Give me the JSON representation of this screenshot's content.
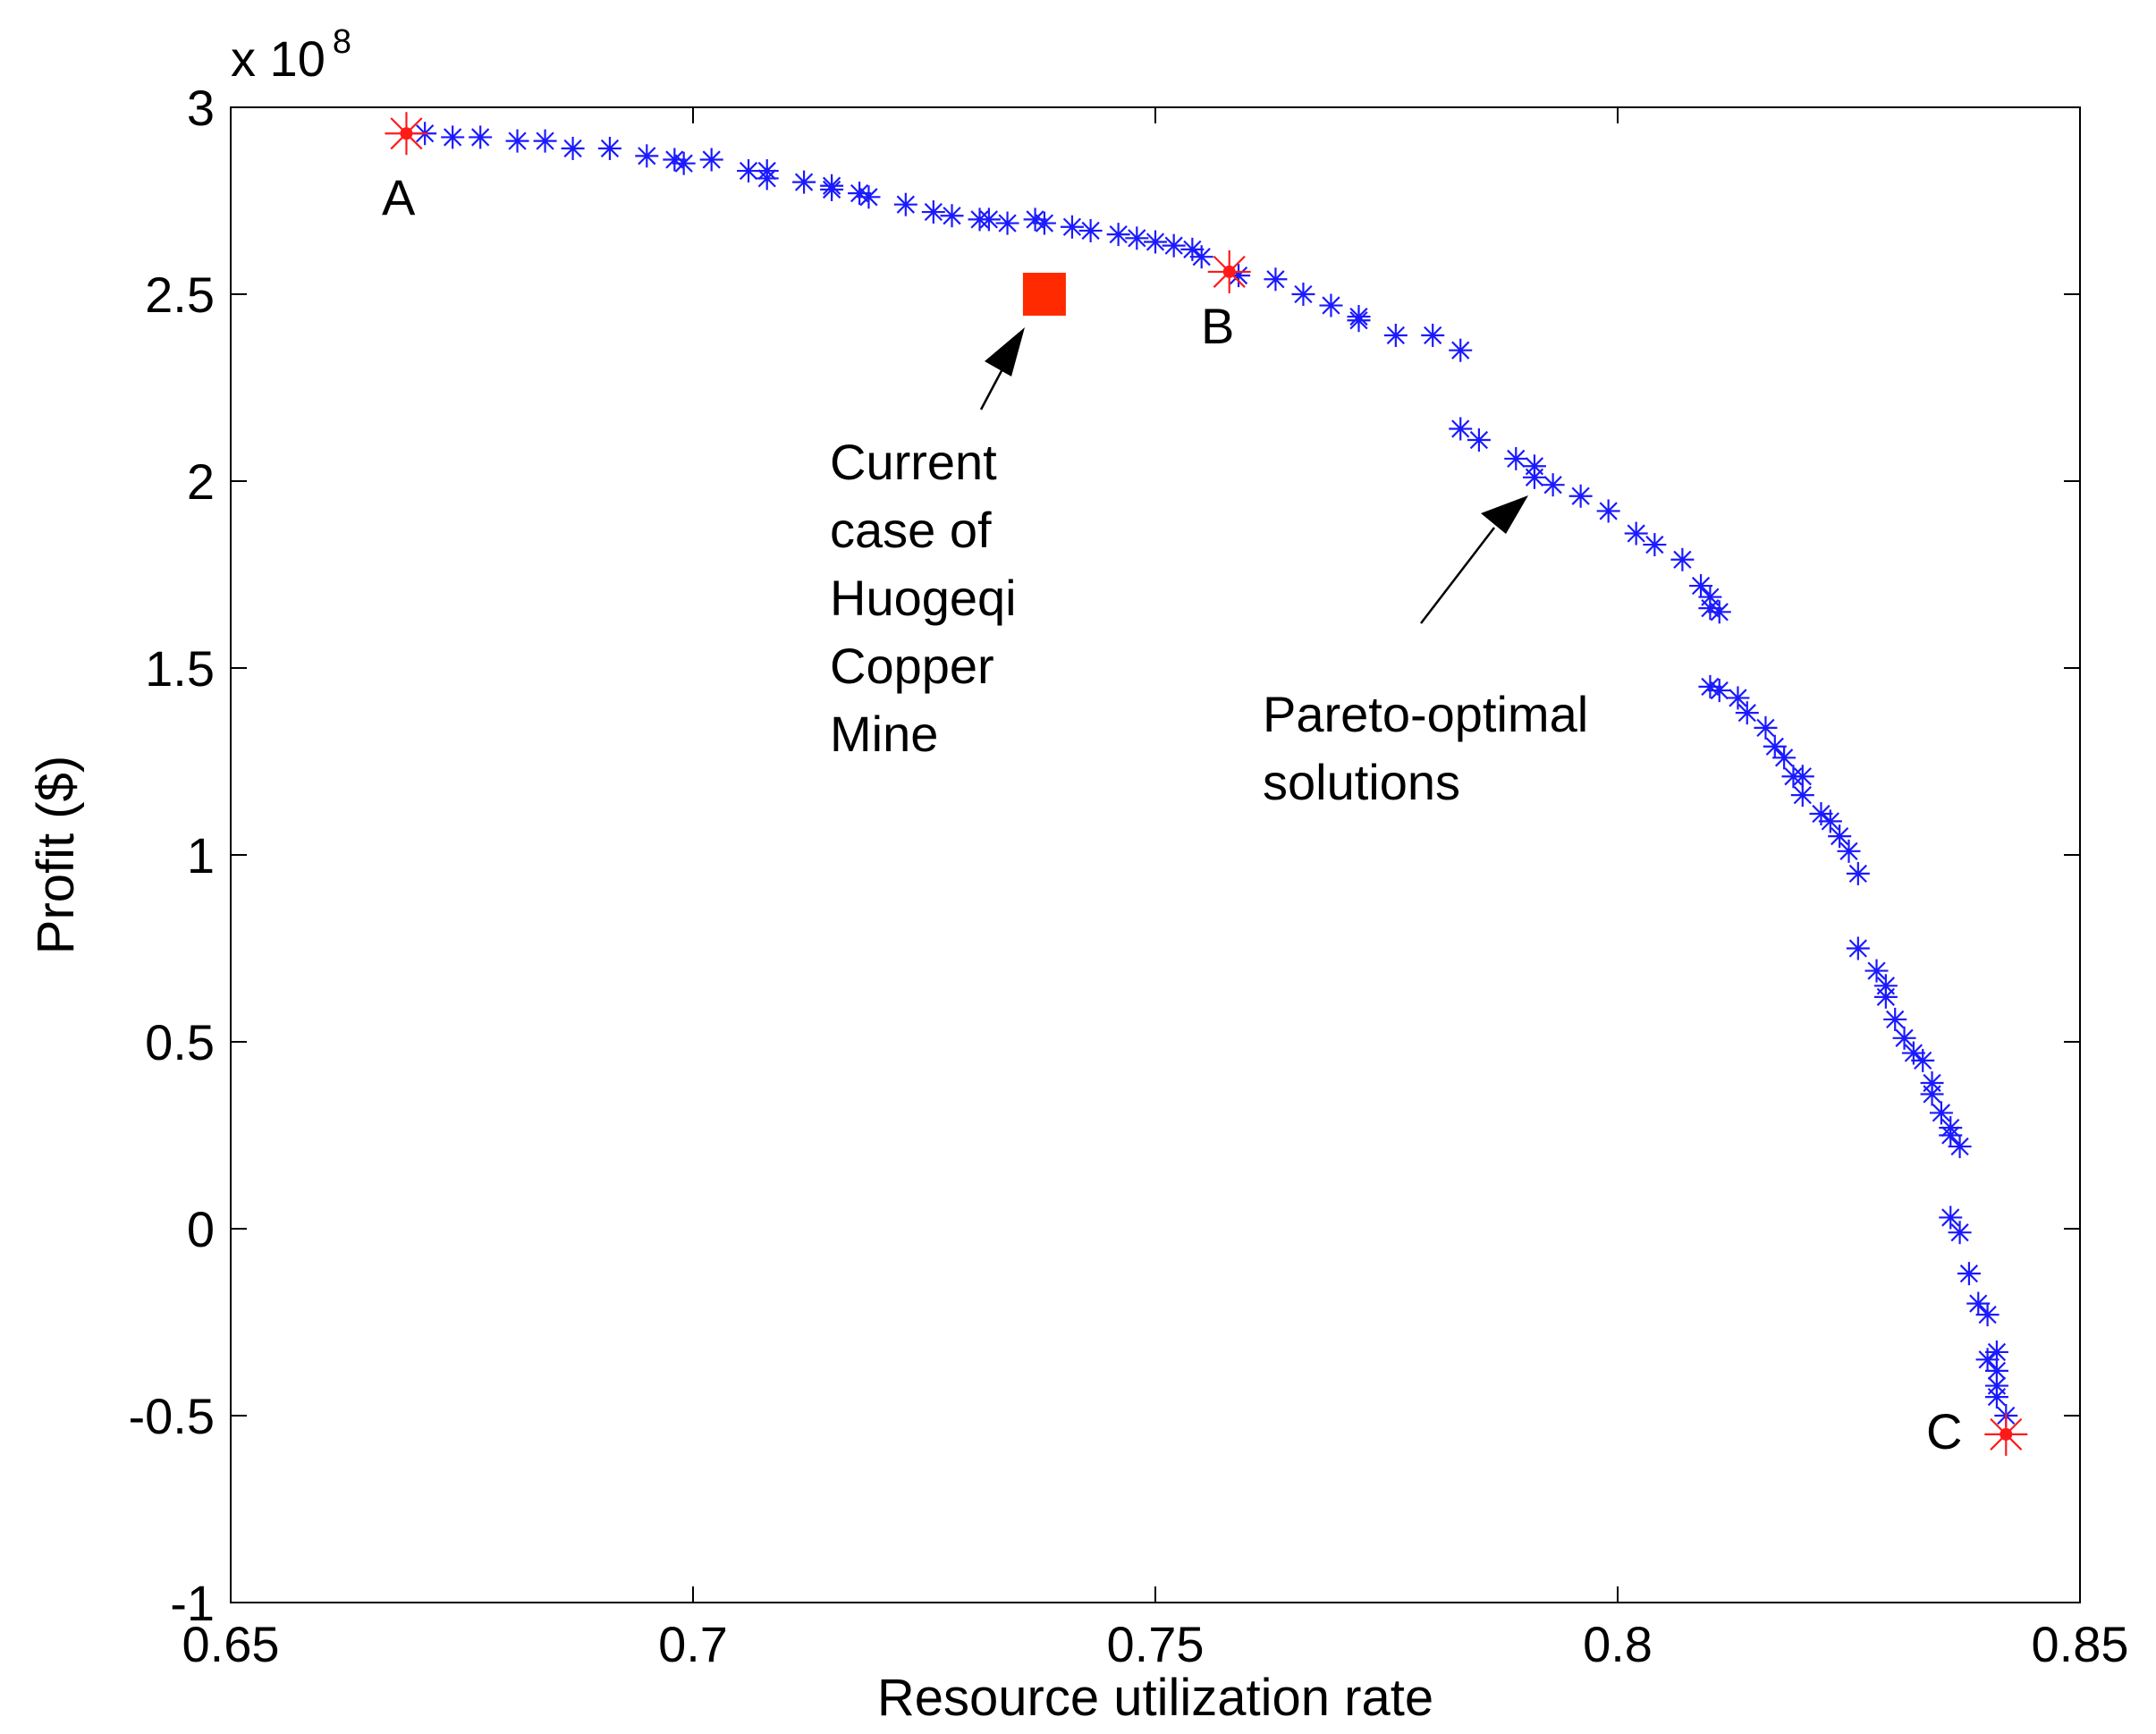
{
  "chart_data": {
    "type": "scatter",
    "xlabel": "Resource utilization rate",
    "ylabel": "Profit ($)",
    "y_multiplier": "x 10",
    "y_multiplier_exp": "8",
    "xlim": [
      0.65,
      0.85
    ],
    "ylim": [
      -1,
      3
    ],
    "xticks": [
      0.65,
      0.7,
      0.75,
      0.8,
      0.85
    ],
    "xtick_labels": [
      "0.65",
      "0.7",
      "0.75",
      "0.8",
      "0.85"
    ],
    "yticks": [
      -1,
      -0.5,
      0,
      0.5,
      1,
      1.5,
      2,
      2.5,
      3
    ],
    "ytick_labels": [
      "-1",
      "-0.5",
      "0",
      "0.5",
      "1",
      "1.5",
      "2",
      "2.5",
      "3"
    ],
    "grid": false,
    "colors": {
      "series": "#1a1aff",
      "highlight": "#ff1a1a",
      "current": "#ff2a00",
      "arrow": "#000000"
    },
    "series": [
      {
        "name": "Pareto-optimal solutions",
        "marker": "star",
        "x": [
          0.671,
          0.674,
          0.677,
          0.681,
          0.684,
          0.687,
          0.691,
          0.695,
          0.698,
          0.699,
          0.702,
          0.706,
          0.708,
          0.708,
          0.712,
          0.715,
          0.715,
          0.718,
          0.719,
          0.723,
          0.726,
          0.728,
          0.731,
          0.732,
          0.734,
          0.737,
          0.738,
          0.741,
          0.743,
          0.746,
          0.748,
          0.75,
          0.752,
          0.754,
          0.755,
          0.759,
          0.763,
          0.766,
          0.769,
          0.772,
          0.772,
          0.776,
          0.78,
          0.783,
          0.783,
          0.785,
          0.789,
          0.791,
          0.791,
          0.793,
          0.796,
          0.799,
          0.802,
          0.804,
          0.807,
          0.809,
          0.81,
          0.81,
          0.811,
          0.81,
          0.811,
          0.813,
          0.814,
          0.816,
          0.817,
          0.818,
          0.819,
          0.82,
          0.82,
          0.822,
          0.823,
          0.824,
          0.825,
          0.826,
          0.826,
          0.828,
          0.829,
          0.829,
          0.83,
          0.831,
          0.832,
          0.833,
          0.834,
          0.834,
          0.835,
          0.836,
          0.836,
          0.837,
          0.836,
          0.837,
          0.838,
          0.839,
          0.84,
          0.841,
          0.84,
          0.841,
          0.841,
          0.841,
          0.842
        ],
        "y": [
          2.93,
          2.92,
          2.92,
          2.91,
          2.91,
          2.89,
          2.89,
          2.87,
          2.86,
          2.85,
          2.86,
          2.83,
          2.83,
          2.81,
          2.8,
          2.79,
          2.78,
          2.77,
          2.76,
          2.74,
          2.72,
          2.71,
          2.7,
          2.7,
          2.69,
          2.7,
          2.69,
          2.68,
          2.67,
          2.66,
          2.65,
          2.64,
          2.63,
          2.62,
          2.6,
          2.55,
          2.54,
          2.5,
          2.47,
          2.44,
          2.43,
          2.39,
          2.39,
          2.35,
          2.14,
          2.11,
          2.06,
          2.04,
          2.01,
          1.99,
          1.96,
          1.92,
          1.86,
          1.83,
          1.79,
          1.72,
          1.69,
          1.66,
          1.65,
          1.45,
          1.44,
          1.42,
          1.38,
          1.34,
          1.29,
          1.26,
          1.21,
          1.16,
          1.21,
          1.11,
          1.09,
          1.05,
          1.01,
          0.95,
          0.75,
          0.69,
          0.65,
          0.62,
          0.56,
          0.51,
          0.47,
          0.45,
          0.39,
          0.36,
          0.31,
          0.27,
          0.25,
          0.22,
          0.03,
          -0.01,
          -0.12,
          -0.2,
          -0.23,
          -0.33,
          -0.35,
          -0.38,
          -0.42,
          -0.45,
          -0.5
        ]
      }
    ],
    "highlighted_points": [
      {
        "label": "A",
        "x": 0.669,
        "y": 2.93
      },
      {
        "label": "B",
        "x": 0.758,
        "y": 2.56
      },
      {
        "label": "C",
        "x": 0.842,
        "y": -0.55
      }
    ],
    "current_case": {
      "x": 0.738,
      "y": 2.5
    },
    "annotations": [
      {
        "name": "current-case",
        "lines": [
          "Current",
          "case of",
          "Huogeqi",
          "Copper",
          "Mine"
        ]
      },
      {
        "name": "pareto",
        "lines": [
          "Pareto-optimal",
          "solutions"
        ]
      }
    ]
  }
}
